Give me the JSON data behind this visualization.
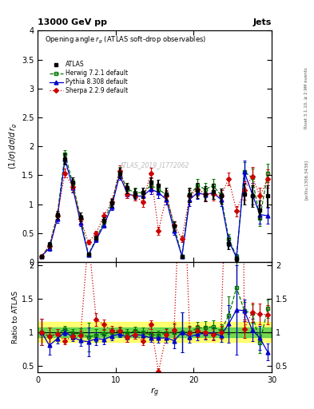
{
  "title_main": "13000 GeV pp",
  "title_right": "Jets",
  "plot_title": "Opening angle $r_g$ (ATLAS soft-drop observables)",
  "watermark": "ATLAS_2019_I1772062",
  "right_label_top": "Rivet 3.1.10, ≥ 2.9M events",
  "right_label_bottom": "[arXiv:1306.3436]",
  "xlabel": "$r_g$",
  "ylabel_main": "$(1/\\sigma)\\,d\\sigma/d\\,r_g$",
  "ylabel_ratio": "Ratio to ATLAS",
  "xlim": [
    0,
    30
  ],
  "ylim_main": [
    0,
    4
  ],
  "ylim_ratio": [
    0.4,
    2.05
  ],
  "xticks": [
    0,
    10,
    20,
    30
  ],
  "yticks_main": [
    0,
    0.5,
    1.0,
    1.5,
    2.0,
    2.5,
    3.0,
    3.5,
    4.0
  ],
  "yticks_ratio": [
    0.5,
    1.0,
    1.5,
    2.0
  ],
  "atlas_x": [
    0.5,
    1.5,
    2.5,
    3.5,
    4.5,
    5.5,
    6.5,
    7.5,
    8.5,
    9.5,
    10.5,
    11.5,
    12.5,
    13.5,
    14.5,
    15.5,
    16.5,
    17.5,
    18.5,
    19.5,
    20.5,
    21.5,
    22.5,
    23.5,
    24.5,
    25.5,
    26.5,
    27.5,
    28.5,
    29.5
  ],
  "atlas_y": [
    0.1,
    0.3,
    0.82,
    1.78,
    1.38,
    0.78,
    0.14,
    0.42,
    0.72,
    1.02,
    1.54,
    1.28,
    1.18,
    1.2,
    1.38,
    1.32,
    1.18,
    0.62,
    0.1,
    1.16,
    1.24,
    1.18,
    1.22,
    1.14,
    0.32,
    0.06,
    1.18,
    1.14,
    0.9,
    1.14
  ],
  "atlas_yerr": [
    0.02,
    0.05,
    0.07,
    0.1,
    0.09,
    0.07,
    0.03,
    0.04,
    0.06,
    0.07,
    0.09,
    0.09,
    0.09,
    0.09,
    0.09,
    0.1,
    0.1,
    0.08,
    0.03,
    0.13,
    0.13,
    0.13,
    0.13,
    0.13,
    0.1,
    0.04,
    0.18,
    0.18,
    0.16,
    0.18
  ],
  "herwig_x": [
    0.5,
    1.5,
    2.5,
    3.5,
    4.5,
    5.5,
    6.5,
    7.5,
    8.5,
    9.5,
    10.5,
    11.5,
    12.5,
    13.5,
    14.5,
    15.5,
    16.5,
    17.5,
    18.5,
    19.5,
    20.5,
    21.5,
    22.5,
    23.5,
    24.5,
    25.5,
    26.5,
    27.5,
    28.5,
    29.5
  ],
  "herwig_y": [
    0.1,
    0.28,
    0.8,
    1.86,
    1.36,
    0.76,
    0.13,
    0.4,
    0.7,
    1.02,
    1.56,
    1.26,
    1.2,
    1.2,
    1.32,
    1.26,
    1.16,
    0.62,
    0.1,
    1.16,
    1.32,
    1.26,
    1.32,
    1.16,
    0.4,
    0.1,
    1.56,
    1.46,
    0.76,
    1.54
  ],
  "herwig_yerr": [
    0.02,
    0.04,
    0.06,
    0.08,
    0.08,
    0.06,
    0.03,
    0.04,
    0.05,
    0.06,
    0.08,
    0.08,
    0.08,
    0.08,
    0.08,
    0.09,
    0.09,
    0.07,
    0.03,
    0.11,
    0.11,
    0.11,
    0.11,
    0.11,
    0.09,
    0.04,
    0.16,
    0.16,
    0.14,
    0.16
  ],
  "pythia_x": [
    0.5,
    1.5,
    2.5,
    3.5,
    4.5,
    5.5,
    6.5,
    7.5,
    8.5,
    9.5,
    10.5,
    11.5,
    12.5,
    13.5,
    14.5,
    15.5,
    16.5,
    17.5,
    18.5,
    19.5,
    20.5,
    21.5,
    22.5,
    23.5,
    24.5,
    25.5,
    26.5,
    27.5,
    28.5,
    29.5
  ],
  "pythia_y": [
    0.1,
    0.24,
    0.74,
    1.78,
    1.28,
    0.68,
    0.12,
    0.38,
    0.64,
    0.96,
    1.5,
    1.18,
    1.14,
    1.14,
    1.26,
    1.2,
    1.08,
    0.54,
    0.1,
    1.08,
    1.2,
    1.16,
    1.2,
    1.08,
    0.36,
    0.08,
    1.56,
    1.18,
    0.82,
    0.8
  ],
  "pythia_yerr": [
    0.02,
    0.04,
    0.06,
    0.08,
    0.08,
    0.06,
    0.03,
    0.04,
    0.05,
    0.06,
    0.08,
    0.08,
    0.08,
    0.08,
    0.08,
    0.09,
    0.09,
    0.07,
    0.03,
    0.11,
    0.11,
    0.11,
    0.11,
    0.11,
    0.09,
    0.04,
    0.19,
    0.19,
    0.16,
    0.14
  ],
  "sherpa_x": [
    0.5,
    1.5,
    2.5,
    3.5,
    4.5,
    5.5,
    6.5,
    7.5,
    8.5,
    9.5,
    10.5,
    11.5,
    12.5,
    13.5,
    14.5,
    15.5,
    16.5,
    17.5,
    18.5,
    19.5,
    20.5,
    21.5,
    22.5,
    23.5,
    24.5,
    25.5,
    26.5,
    27.5,
    28.5,
    29.5
  ],
  "sherpa_y": [
    0.1,
    0.28,
    0.8,
    1.54,
    1.3,
    0.74,
    0.34,
    0.5,
    0.8,
    1.04,
    1.58,
    1.18,
    1.14,
    1.04,
    1.54,
    0.54,
    1.14,
    0.64,
    0.4,
    1.14,
    1.26,
    1.18,
    1.18,
    1.14,
    1.44,
    0.88,
    1.24,
    1.48,
    1.14,
    1.44
  ],
  "sherpa_yerr": [
    0.02,
    0.04,
    0.06,
    0.08,
    0.08,
    0.06,
    0.04,
    0.04,
    0.06,
    0.07,
    0.09,
    0.08,
    0.08,
    0.08,
    0.09,
    0.07,
    0.09,
    0.07,
    0.05,
    0.11,
    0.11,
    0.11,
    0.11,
    0.11,
    0.11,
    0.09,
    0.16,
    0.16,
    0.14,
    0.16
  ],
  "atlas_color": "#000000",
  "herwig_color": "#007700",
  "pythia_color": "#0000cc",
  "sherpa_color": "#cc0000",
  "ratio_band_yellow": [
    0.85,
    1.15
  ],
  "ratio_band_green": [
    0.93,
    1.07
  ],
  "band_yellow_color": "#ffff44",
  "band_green_color": "#44cc44"
}
